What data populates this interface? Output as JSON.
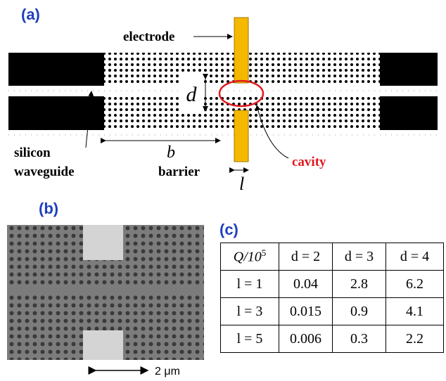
{
  "panel_a": {
    "label": "(a)",
    "electrode": "electrode",
    "d": "d",
    "silicon": "silicon",
    "waveguide": "waveguide",
    "b": "b",
    "barrier": "barrier",
    "cavity": "cavity",
    "l": "l"
  },
  "panel_b": {
    "label": "(b)",
    "scale": "2 μm"
  },
  "panel_c": {
    "label": "(c)",
    "table": {
      "header": [
        {
          "base": "Q/10",
          "exp": "5"
        },
        "d = 2",
        "d = 3",
        "d = 4"
      ],
      "rows": [
        [
          "l = 1",
          "0.04",
          "2.8",
          "6.2"
        ],
        [
          "l = 3",
          "0.015",
          "0.9",
          "4.1"
        ],
        [
          "l = 5",
          "0.006",
          "0.3",
          "2.2"
        ]
      ]
    }
  }
}
